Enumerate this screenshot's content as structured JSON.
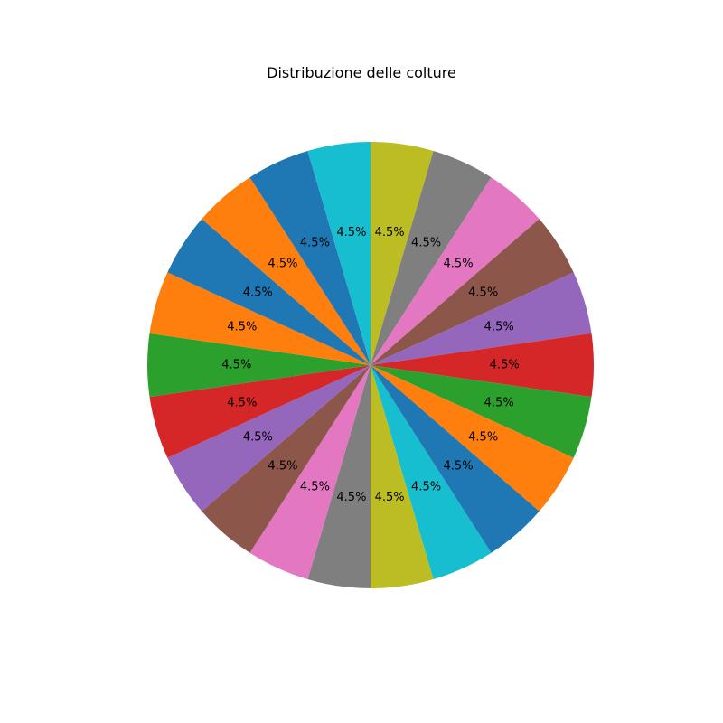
{
  "chart_data": {
    "type": "pie",
    "title": "Distribuzione delle colture",
    "slices": [
      {
        "value": 4.5,
        "label": "4.5%",
        "color": "#bcbd22"
      },
      {
        "value": 4.5,
        "label": "4.5%",
        "color": "#7f7f7f"
      },
      {
        "value": 4.5,
        "label": "4.5%",
        "color": "#e377c2"
      },
      {
        "value": 4.5,
        "label": "4.5%",
        "color": "#8c564b"
      },
      {
        "value": 4.5,
        "label": "4.5%",
        "color": "#9467bd"
      },
      {
        "value": 4.5,
        "label": "4.5%",
        "color": "#d62728"
      },
      {
        "value": 4.5,
        "label": "4.5%",
        "color": "#2ca02c"
      },
      {
        "value": 4.5,
        "label": "4.5%",
        "color": "#ff7f0e"
      },
      {
        "value": 4.5,
        "label": "4.5%",
        "color": "#1f77b4"
      },
      {
        "value": 4.5,
        "label": "4.5%",
        "color": "#17becf"
      },
      {
        "value": 4.5,
        "label": "4.5%",
        "color": "#bcbd22"
      },
      {
        "value": 4.5,
        "label": "4.5%",
        "color": "#7f7f7f"
      },
      {
        "value": 4.5,
        "label": "4.5%",
        "color": "#e377c2"
      },
      {
        "value": 4.5,
        "label": "4.5%",
        "color": "#8c564b"
      },
      {
        "value": 4.5,
        "label": "4.5%",
        "color": "#9467bd"
      },
      {
        "value": 4.5,
        "label": "4.5%",
        "color": "#d62728"
      },
      {
        "value": 4.5,
        "label": "4.5%",
        "color": "#2ca02c"
      },
      {
        "value": 4.5,
        "label": "4.5%",
        "color": "#ff7f0e"
      },
      {
        "value": 4.5,
        "label": "4.5%",
        "color": "#1f77b4"
      },
      {
        "value": 4.5,
        "label": "4.5%",
        "color": "#ff7f0e"
      },
      {
        "value": 4.5,
        "label": "4.5%",
        "color": "#1f77b4"
      },
      {
        "value": 4.5,
        "label": "4.5%",
        "color": "#17becf"
      }
    ],
    "legend": "none"
  }
}
